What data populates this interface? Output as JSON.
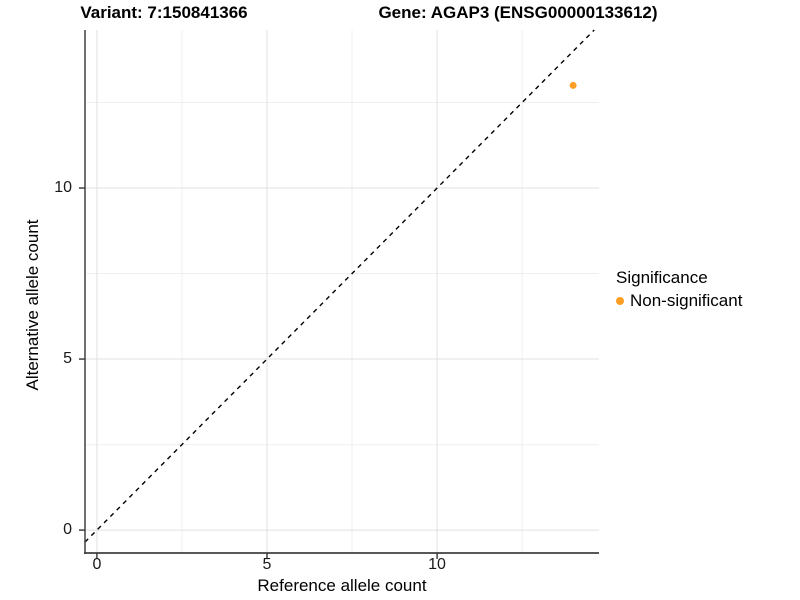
{
  "chart_data": {
    "type": "scatter",
    "title_left": "Variant: 7:150841366",
    "title_right": "Gene: AGAP3 (ENSG00000133612)",
    "xlabel": "Reference allele count",
    "ylabel": "Alternative allele count",
    "xlim": [
      -0.35,
      14.76
    ],
    "ylim": [
      -0.67,
      14.62
    ],
    "x_ticks": [
      0,
      5,
      10
    ],
    "y_ticks": [
      0,
      5,
      10
    ],
    "x_minor_ticks": [
      2.5,
      7.5,
      12.5
    ],
    "y_minor_ticks": [
      2.5,
      7.5,
      12.5
    ],
    "grid": "major+minor",
    "identity_line": {
      "slope": 1,
      "intercept": 0,
      "style": "dashed",
      "color": "#000000"
    },
    "series": [
      {
        "name": "Non-significant",
        "color": "#FC9E24",
        "points": [
          {
            "x": 14,
            "y": 13
          }
        ]
      }
    ],
    "legend": {
      "title": "Significance",
      "position": "right",
      "entries": [
        {
          "label": "Non-significant",
          "color": "#FC9E24"
        }
      ]
    }
  },
  "colors": {
    "background": "#FFFFFF",
    "grid_major": "#E1E1E1",
    "grid_minor": "#F0F0F0",
    "axis_line": "#404040",
    "tick_mark": "#333333",
    "text": "#000000"
  }
}
